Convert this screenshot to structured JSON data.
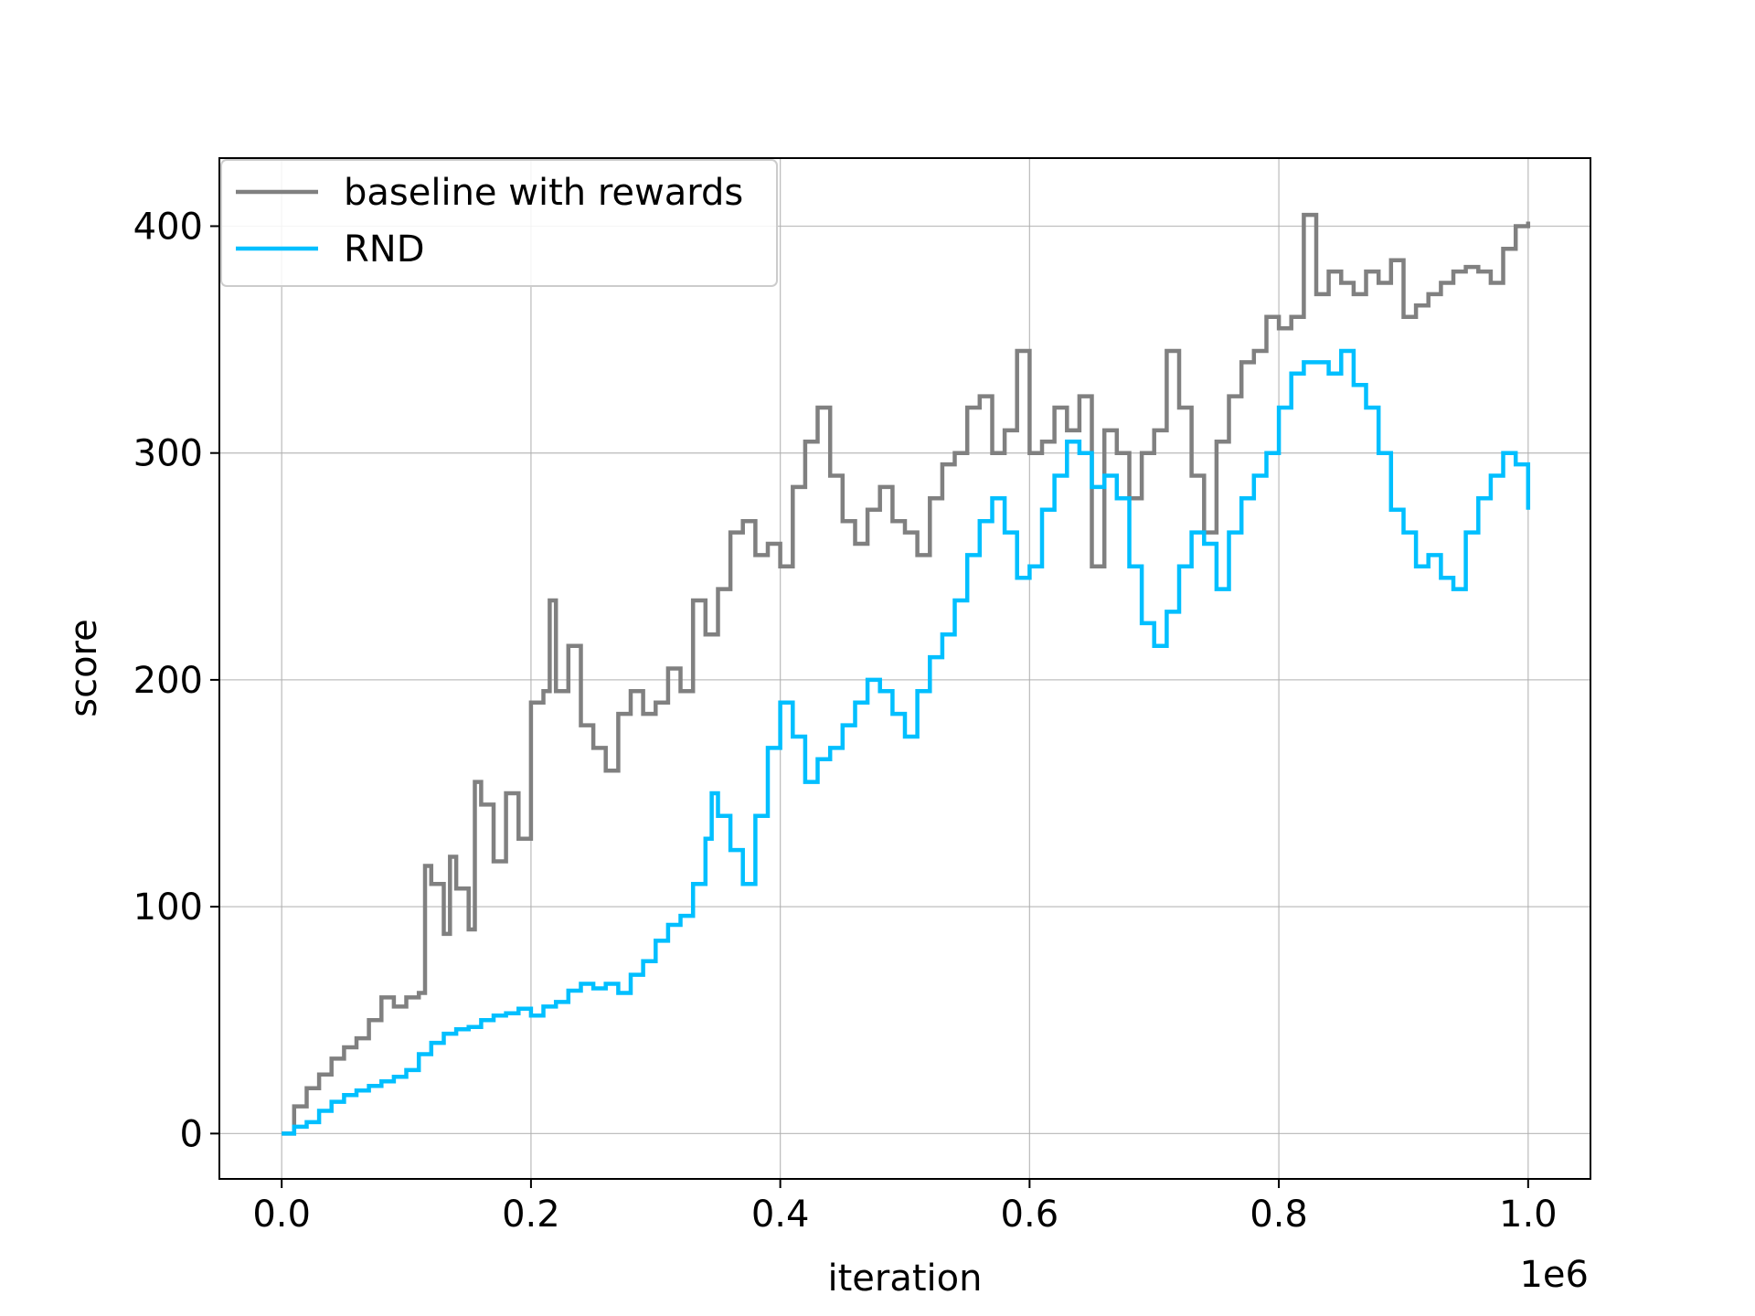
{
  "chart_data": {
    "type": "line",
    "xlabel": "iteration",
    "ylabel": "score",
    "x_offset_label": "1e6",
    "xlim": [
      -0.05,
      1.05
    ],
    "ylim": [
      -20,
      430
    ],
    "x_ticks": [
      0.0,
      0.2,
      0.4,
      0.6,
      0.8,
      1.0
    ],
    "x_tick_labels": [
      "0.0",
      "0.2",
      "0.4",
      "0.6",
      "0.8",
      "1.0"
    ],
    "y_ticks": [
      0,
      100,
      200,
      300,
      400
    ],
    "y_tick_labels": [
      "0",
      "100",
      "200",
      "300",
      "400"
    ],
    "grid": true,
    "legend_position": "top-left",
    "series": [
      {
        "name": "baseline with rewards",
        "color": "#808080",
        "x": [
          0.0,
          0.01,
          0.02,
          0.03,
          0.04,
          0.05,
          0.06,
          0.07,
          0.08,
          0.09,
          0.1,
          0.11,
          0.115,
          0.12,
          0.13,
          0.135,
          0.14,
          0.15,
          0.155,
          0.16,
          0.17,
          0.18,
          0.19,
          0.2,
          0.21,
          0.215,
          0.22,
          0.23,
          0.24,
          0.25,
          0.26,
          0.27,
          0.28,
          0.29,
          0.3,
          0.31,
          0.32,
          0.33,
          0.34,
          0.35,
          0.36,
          0.37,
          0.38,
          0.39,
          0.4,
          0.41,
          0.42,
          0.43,
          0.44,
          0.45,
          0.46,
          0.47,
          0.48,
          0.49,
          0.5,
          0.51,
          0.52,
          0.53,
          0.54,
          0.55,
          0.56,
          0.57,
          0.58,
          0.59,
          0.6,
          0.61,
          0.62,
          0.63,
          0.64,
          0.65,
          0.66,
          0.67,
          0.68,
          0.69,
          0.7,
          0.71,
          0.72,
          0.73,
          0.74,
          0.75,
          0.76,
          0.77,
          0.78,
          0.79,
          0.8,
          0.81,
          0.82,
          0.83,
          0.84,
          0.85,
          0.86,
          0.87,
          0.88,
          0.89,
          0.9,
          0.91,
          0.92,
          0.93,
          0.94,
          0.95,
          0.96,
          0.97,
          0.98,
          0.99,
          1.0
        ],
        "y": [
          0,
          12,
          20,
          26,
          33,
          38,
          42,
          50,
          60,
          56,
          60,
          62,
          118,
          110,
          88,
          122,
          108,
          90,
          155,
          145,
          120,
          150,
          130,
          190,
          195,
          235,
          195,
          215,
          180,
          170,
          160,
          185,
          195,
          185,
          190,
          205,
          195,
          235,
          220,
          240,
          265,
          270,
          255,
          260,
          250,
          285,
          305,
          320,
          290,
          270,
          260,
          275,
          285,
          270,
          265,
          255,
          280,
          295,
          300,
          320,
          325,
          300,
          310,
          345,
          300,
          305,
          320,
          310,
          325,
          250,
          310,
          300,
          280,
          300,
          310,
          345,
          320,
          290,
          265,
          305,
          325,
          340,
          345,
          360,
          355,
          360,
          405,
          370,
          380,
          375,
          370,
          380,
          375,
          385,
          360,
          365,
          370,
          375,
          380,
          382,
          380,
          375,
          390,
          400,
          402
        ]
      },
      {
        "name": "RND",
        "color": "#00bfff",
        "x": [
          0.0,
          0.01,
          0.02,
          0.03,
          0.04,
          0.05,
          0.06,
          0.07,
          0.08,
          0.09,
          0.1,
          0.11,
          0.12,
          0.13,
          0.14,
          0.15,
          0.16,
          0.17,
          0.18,
          0.19,
          0.2,
          0.21,
          0.22,
          0.23,
          0.24,
          0.25,
          0.26,
          0.27,
          0.28,
          0.29,
          0.3,
          0.31,
          0.32,
          0.33,
          0.34,
          0.345,
          0.35,
          0.36,
          0.37,
          0.38,
          0.39,
          0.4,
          0.41,
          0.42,
          0.43,
          0.44,
          0.45,
          0.46,
          0.47,
          0.48,
          0.49,
          0.5,
          0.51,
          0.52,
          0.53,
          0.54,
          0.55,
          0.56,
          0.57,
          0.58,
          0.59,
          0.6,
          0.61,
          0.62,
          0.63,
          0.64,
          0.65,
          0.66,
          0.67,
          0.68,
          0.69,
          0.7,
          0.71,
          0.72,
          0.73,
          0.74,
          0.75,
          0.76,
          0.77,
          0.78,
          0.79,
          0.8,
          0.81,
          0.82,
          0.83,
          0.84,
          0.85,
          0.86,
          0.87,
          0.88,
          0.89,
          0.9,
          0.91,
          0.92,
          0.93,
          0.94,
          0.95,
          0.96,
          0.97,
          0.98,
          0.99,
          1.0
        ],
        "y": [
          0,
          3,
          5,
          10,
          14,
          17,
          19,
          21,
          23,
          25,
          28,
          35,
          40,
          44,
          46,
          47,
          50,
          52,
          53,
          55,
          52,
          56,
          58,
          63,
          66,
          64,
          66,
          62,
          70,
          76,
          85,
          92,
          96,
          110,
          130,
          150,
          140,
          125,
          110,
          140,
          170,
          190,
          175,
          155,
          165,
          170,
          180,
          190,
          200,
          195,
          185,
          175,
          195,
          210,
          220,
          235,
          255,
          270,
          280,
          265,
          245,
          250,
          275,
          290,
          305,
          300,
          285,
          290,
          280,
          250,
          225,
          215,
          230,
          250,
          265,
          260,
          240,
          265,
          280,
          290,
          300,
          320,
          335,
          340,
          340,
          335,
          345,
          330,
          320,
          300,
          275,
          265,
          250,
          255,
          245,
          240,
          265,
          280,
          290,
          300,
          295,
          275
        ]
      }
    ]
  }
}
